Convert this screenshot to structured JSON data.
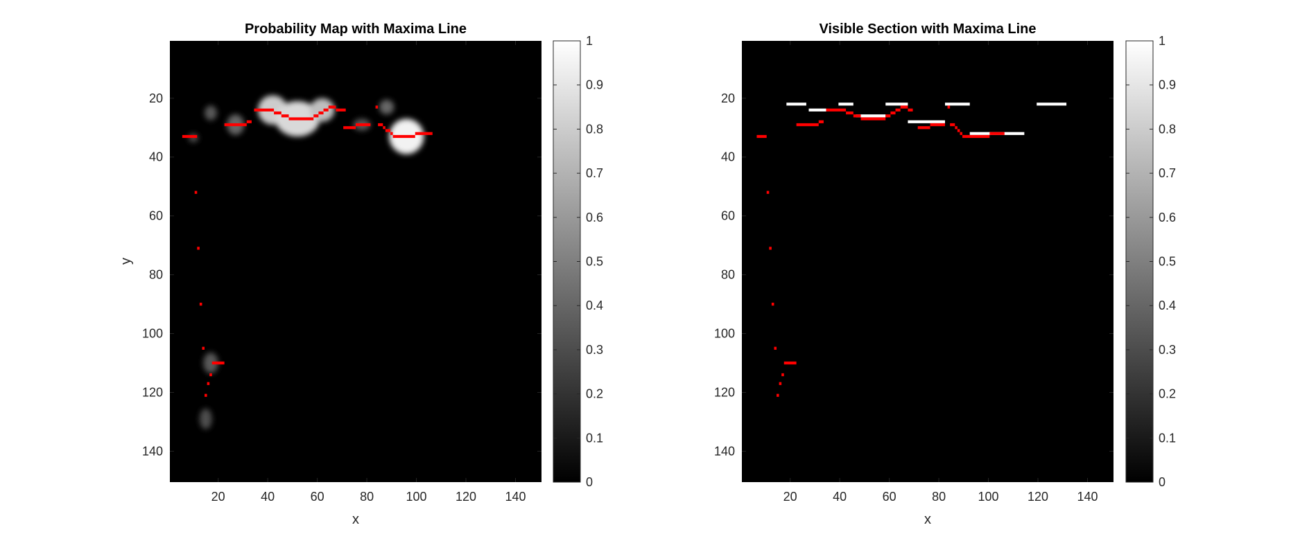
{
  "figure": {
    "background": "#ffffff"
  },
  "chart_data": [
    {
      "type": "heatmap",
      "title": "Probability Map with Maxima Line",
      "xlabel": "x",
      "ylabel": "y",
      "xlim": [
        0.5,
        150.5
      ],
      "ylim": [
        0.5,
        150.5
      ],
      "y_reversed": true,
      "xticks": [
        20,
        40,
        60,
        80,
        100,
        120,
        140
      ],
      "yticks": [
        20,
        40,
        60,
        80,
        100,
        120,
        140
      ],
      "colormap": "gray",
      "colorbar": {
        "limits": [
          0,
          1
        ],
        "ticks": [
          0,
          0.1,
          0.2,
          0.3,
          0.4,
          0.5,
          0.6,
          0.7,
          0.8,
          0.9,
          1
        ]
      },
      "background_value": 0,
      "blobs": [
        {
          "cx": 17,
          "cy": 25,
          "rx": 2.5,
          "ry": 2.5,
          "value": 0.35
        },
        {
          "cx": 10,
          "cy": 33.5,
          "rx": 2,
          "ry": 1.5,
          "value": 0.3
        },
        {
          "cx": 27,
          "cy": 29,
          "rx": 3.5,
          "ry": 3.5,
          "value": 0.4
        },
        {
          "cx": 42,
          "cy": 24,
          "rx": 6,
          "ry": 5,
          "value": 0.8
        },
        {
          "cx": 52,
          "cy": 27,
          "rx": 9,
          "ry": 6,
          "value": 0.85
        },
        {
          "cx": 62,
          "cy": 24,
          "rx": 5,
          "ry": 4,
          "value": 0.75
        },
        {
          "cx": 78,
          "cy": 29,
          "rx": 3.5,
          "ry": 2,
          "value": 0.35
        },
        {
          "cx": 88,
          "cy": 23,
          "rx": 3,
          "ry": 2.5,
          "value": 0.4
        },
        {
          "cx": 96,
          "cy": 33,
          "rx": 7,
          "ry": 6,
          "value": 0.95
        },
        {
          "cx": 17,
          "cy": 110,
          "rx": 3,
          "ry": 3.5,
          "value": 0.35
        },
        {
          "cx": 15,
          "cy": 129,
          "rx": 2.5,
          "ry": 3.5,
          "value": 0.3
        }
      ],
      "maxima_line": {
        "color": "#ff0000",
        "segments": [
          {
            "y": 33,
            "x": [
              6,
              11
            ]
          },
          {
            "y": 29,
            "x": [
              23,
              31
            ]
          },
          {
            "y": 28,
            "x": [
              32,
              33
            ]
          },
          {
            "y": 24,
            "x": [
              35,
              42
            ]
          },
          {
            "y": 25,
            "x": [
              43,
              45
            ]
          },
          {
            "y": 26,
            "x": [
              46,
              48
            ]
          },
          {
            "y": 27,
            "x": [
              49,
              58
            ]
          },
          {
            "y": 26,
            "x": [
              59,
              60
            ]
          },
          {
            "y": 25,
            "x": [
              61,
              62
            ]
          },
          {
            "y": 24,
            "x": [
              63,
              64
            ]
          },
          {
            "y": 23,
            "x": [
              65,
              67
            ]
          },
          {
            "y": 24,
            "x": [
              68,
              71
            ]
          },
          {
            "y": 30,
            "x": [
              71,
              75
            ]
          },
          {
            "y": 29,
            "x": [
              76,
              81
            ]
          },
          {
            "y": 23,
            "x": [
              84,
              84
            ]
          },
          {
            "y": 29,
            "x": [
              85,
              86
            ]
          },
          {
            "y": 30,
            "x": [
              87,
              87
            ]
          },
          {
            "y": 31,
            "x": [
              88,
              89
            ]
          },
          {
            "y": 32,
            "x": [
              90,
              90
            ]
          },
          {
            "y": 33,
            "x": [
              91,
              99
            ]
          },
          {
            "y": 32,
            "x": [
              100,
              106
            ]
          },
          {
            "y": 52,
            "x": [
              11,
              11
            ]
          },
          {
            "y": 71,
            "x": [
              12,
              12
            ]
          },
          {
            "y": 90,
            "x": [
              13,
              13
            ]
          },
          {
            "y": 105,
            "x": [
              14,
              14
            ]
          },
          {
            "y": 110,
            "x": [
              18,
              22
            ]
          },
          {
            "y": 114,
            "x": [
              17,
              17
            ]
          },
          {
            "y": 117,
            "x": [
              16,
              16
            ]
          },
          {
            "y": 121,
            "x": [
              15,
              15
            ]
          }
        ]
      }
    },
    {
      "type": "heatmap",
      "title": "Visible Section with Maxima Line",
      "xlabel": "x",
      "ylabel": "",
      "xlim": [
        0.5,
        150.5
      ],
      "ylim": [
        0.5,
        150.5
      ],
      "y_reversed": true,
      "xticks": [
        20,
        40,
        60,
        80,
        100,
        120,
        140
      ],
      "yticks": [
        20,
        40,
        60,
        80,
        100,
        120,
        140
      ],
      "colormap": "gray",
      "colorbar": {
        "limits": [
          0,
          1
        ],
        "ticks": [
          0,
          0.1,
          0.2,
          0.3,
          0.4,
          0.5,
          0.6,
          0.7,
          0.8,
          0.9,
          1
        ]
      },
      "background_value": 0,
      "visible_segments": [
        {
          "y": 22,
          "x": [
            19,
            26
          ],
          "value": 1
        },
        {
          "y": 24,
          "x": [
            28,
            34
          ],
          "value": 1
        },
        {
          "y": 22,
          "x": [
            40,
            45
          ],
          "value": 1
        },
        {
          "y": 26,
          "x": [
            47,
            58
          ],
          "value": 1
        },
        {
          "y": 22,
          "x": [
            59,
            67
          ],
          "value": 1
        },
        {
          "y": 28,
          "x": [
            68,
            82
          ],
          "value": 1
        },
        {
          "y": 22,
          "x": [
            83,
            92
          ],
          "value": 1
        },
        {
          "y": 32,
          "x": [
            93,
            114
          ],
          "value": 1
        },
        {
          "y": 22,
          "x": [
            120,
            131
          ],
          "value": 1
        }
      ],
      "maxima_line": {
        "color": "#ff0000",
        "segments": [
          {
            "y": 33,
            "x": [
              7,
              10
            ]
          },
          {
            "y": 29,
            "x": [
              23,
              31
            ]
          },
          {
            "y": 28,
            "x": [
              32,
              33
            ]
          },
          {
            "y": 24,
            "x": [
              35,
              42
            ]
          },
          {
            "y": 25,
            "x": [
              43,
              45
            ]
          },
          {
            "y": 26,
            "x": [
              46,
              48
            ]
          },
          {
            "y": 27,
            "x": [
              49,
              58
            ]
          },
          {
            "y": 26,
            "x": [
              59,
              60
            ]
          },
          {
            "y": 25,
            "x": [
              61,
              62
            ]
          },
          {
            "y": 24,
            "x": [
              63,
              64
            ]
          },
          {
            "y": 23,
            "x": [
              65,
              67
            ]
          },
          {
            "y": 24,
            "x": [
              68,
              69
            ]
          },
          {
            "y": 30,
            "x": [
              72,
              76
            ]
          },
          {
            "y": 29,
            "x": [
              77,
              82
            ]
          },
          {
            "y": 23,
            "x": [
              84,
              84
            ]
          },
          {
            "y": 29,
            "x": [
              85,
              86
            ]
          },
          {
            "y": 30,
            "x": [
              87,
              87
            ]
          },
          {
            "y": 31,
            "x": [
              88,
              88
            ]
          },
          {
            "y": 32,
            "x": [
              89,
              89
            ]
          },
          {
            "y": 33,
            "x": [
              90,
              100
            ]
          },
          {
            "y": 32,
            "x": [
              101,
              106
            ]
          },
          {
            "y": 52,
            "x": [
              11,
              11
            ]
          },
          {
            "y": 71,
            "x": [
              12,
              12
            ]
          },
          {
            "y": 90,
            "x": [
              13,
              13
            ]
          },
          {
            "y": 105,
            "x": [
              14,
              14
            ]
          },
          {
            "y": 110,
            "x": [
              18,
              22
            ]
          },
          {
            "y": 114,
            "x": [
              17,
              17
            ]
          },
          {
            "y": 117,
            "x": [
              16,
              16
            ]
          },
          {
            "y": 121,
            "x": [
              15,
              15
            ]
          }
        ]
      }
    }
  ]
}
